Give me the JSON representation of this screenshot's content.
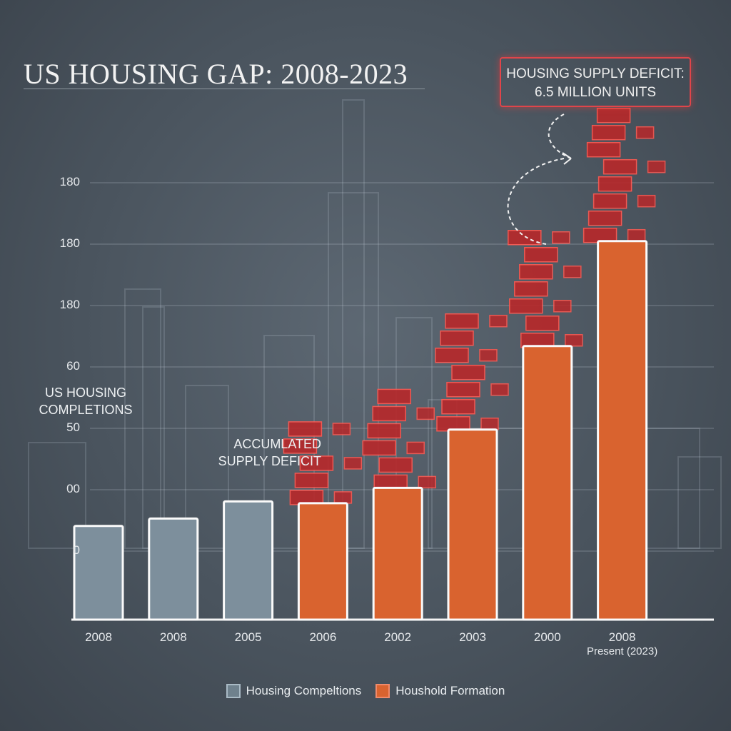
{
  "title": "US HOUSING GAP: 2008-2023",
  "callout": {
    "line1": "HOUSING SUPPLY DEFICIT:",
    "line2": "6.5 MILLION UNITS"
  },
  "annotations": {
    "y_side_label_1": "US HOUSING",
    "y_side_label_2": "COMPLETIONS",
    "deficit_1": "ACCUMLATED",
    "deficit_2": "SUPPLY DEFICIT"
  },
  "chart_data": {
    "type": "bar",
    "title": "US HOUSING GAP: 2008-2023",
    "categories": [
      "2008",
      "2008",
      "2005",
      "2006",
      "2002",
      "2003",
      "2000",
      "2008"
    ],
    "category_sublabels": [
      "",
      "",
      "",
      "",
      "",
      "",
      "",
      "Present (2023)"
    ],
    "y_tick_labels": [
      "0",
      "00",
      "50",
      "60",
      "180",
      "180",
      "180"
    ],
    "y_note": "tick labels are evenly spaced gridlines; values below are in gridline steps above the '0' gridline",
    "values": [
      0.41,
      0.53,
      0.81,
      0.78,
      1.03,
      1.98,
      3.34,
      5.05
    ],
    "series_by_bar": [
      "Housing Compeltions",
      "Housing Compeltions",
      "Housing Compeltions",
      "Houshold Formation",
      "Houshold Formation",
      "Houshold Formation",
      "Houshold Formation",
      "Houshold Formation"
    ],
    "ylim": [
      -1.12,
      6
    ],
    "grid": true,
    "legend": {
      "position": "bottom",
      "entries": [
        {
          "name": "Housing Compeltions",
          "color": "#7d8f9c"
        },
        {
          "name": "Houshold Formation",
          "color": "#d9632f"
        }
      ]
    },
    "colors": {
      "completions": "#7d8f9c",
      "formation": "#d9632f",
      "deficit_bricks": "#b8282a",
      "callout_border": "#e0454a"
    }
  }
}
